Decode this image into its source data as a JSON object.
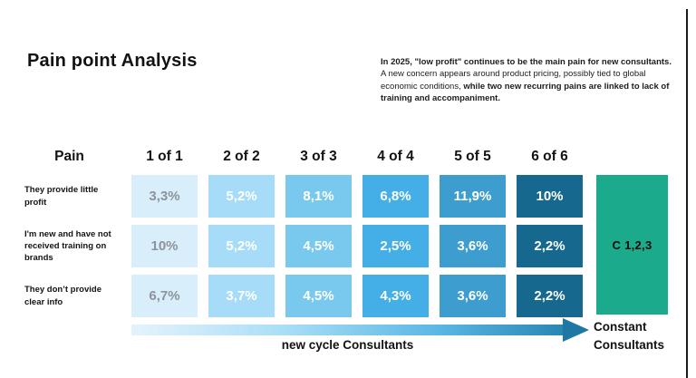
{
  "title": "Pain point Analysis",
  "summary": {
    "line1_bold": "In 2025, \"low profit\" continues to be the main pain for new consultants.",
    "line2_regular": "A new concern appears around product pricing, possibly tied to global economic conditions, ",
    "line2_bold": "while two new recurring pains are linked to lack of training and accompaniment."
  },
  "table": {
    "pain_header": "Pain",
    "columns": [
      "1 of 1",
      "2 of 2",
      "3 of 3",
      "4 of 4",
      "5 of 5",
      "6 of 6"
    ],
    "rows": [
      {
        "label": "They provide little profit",
        "values": [
          "3,3%",
          "5,2%",
          "8,1%",
          "6,8%",
          "11,9%",
          "10%"
        ]
      },
      {
        "label": "I'm new and have not received training on brands",
        "values": [
          "10%",
          "5,2%",
          "4,5%",
          "2,5%",
          "3,6%",
          "2,2%"
        ]
      },
      {
        "label": "They  don’t provide clear info",
        "values": [
          "6,7%",
          "3,7%",
          "4,5%",
          "4,3%",
          "3,6%",
          "2,2%"
        ]
      }
    ],
    "column_colors": [
      "#d9eefb",
      "#a6dcf8",
      "#79c9ef",
      "#44afe7",
      "#3d9dce",
      "#17688f"
    ],
    "muted_text_color": "#8d939a"
  },
  "constant_block": {
    "label": "C 1,2,3",
    "color": "#1caa8c"
  },
  "axis": {
    "x_label": "new cycle Consultants",
    "right_label_line1": "Constant",
    "right_label_line2": "Consultants",
    "arrow_start_color": "#e3f3fc",
    "arrow_end_color": "#1f77a3"
  },
  "chart_data": {
    "type": "heatmap",
    "title": "Pain point Analysis",
    "columns": [
      "1 of 1",
      "2 of 2",
      "3 of 3",
      "4 of 4",
      "5 of 5",
      "6 of 6"
    ],
    "row_labels": [
      "They provide little profit",
      "I'm new and have not received training on brands",
      "They  don’t provide clear info"
    ],
    "values_percent": [
      [
        3.3,
        5.2,
        8.1,
        6.8,
        11.9,
        10
      ],
      [
        10,
        5.2,
        4.5,
        2.5,
        3.6,
        2.2
      ],
      [
        6.7,
        3.7,
        4.5,
        4.3,
        3.6,
        2.2
      ]
    ],
    "value_labels": [
      [
        "3,3%",
        "5,2%",
        "8,1%",
        "6,8%",
        "11,9%",
        "10%"
      ],
      [
        "10%",
        "5,2%",
        "4,5%",
        "2,5%",
        "3,6%",
        "2,2%"
      ],
      [
        "6,7%",
        "3,7%",
        "4,5%",
        "4,3%",
        "3,6%",
        "2,2%"
      ]
    ],
    "extra_column": {
      "label": "C 1,2,3",
      "caption": "Constant Consultants"
    },
    "x_axis_label": "new cycle Consultants",
    "column_colors": [
      "#d9eefb",
      "#a6dcf8",
      "#79c9ef",
      "#44afe7",
      "#3d9dce",
      "#17688f"
    ],
    "legend_position": "none",
    "grid": false
  }
}
